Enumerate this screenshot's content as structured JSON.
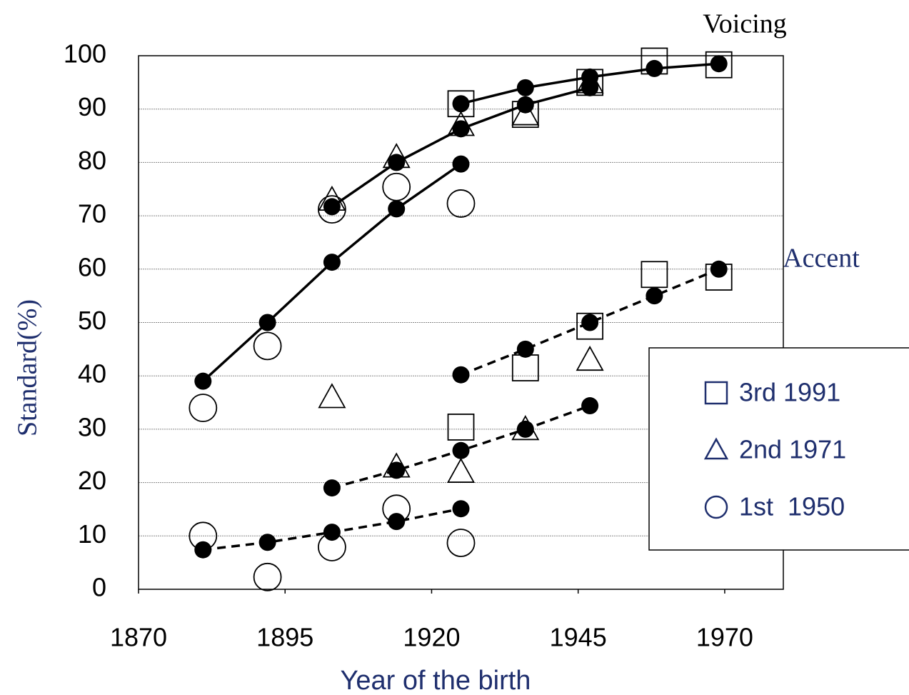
{
  "chart_data": {
    "type": "scatter",
    "xlabel": "Year of the birth",
    "ylabel": "Standard(%)",
    "annotations": [
      "Voicing",
      "Accent"
    ],
    "xlim": [
      1870,
      1980
    ],
    "ylim": [
      0,
      100
    ],
    "xticks": [
      1870,
      1895,
      1920,
      1945,
      1970
    ],
    "yticks": [
      0,
      10,
      20,
      30,
      40,
      50,
      60,
      70,
      80,
      90,
      100
    ],
    "grid": true,
    "legend": "right",
    "series": [
      {
        "name": "3rd 1991",
        "marker": "square",
        "color": "#000000",
        "x": [
          1925,
          1936,
          1947,
          1958,
          1969,
          1925,
          1936,
          1947,
          1958,
          1969
        ],
        "values": [
          91,
          89,
          95,
          99,
          98.3,
          30.4,
          41.5,
          49.3,
          59,
          58.5
        ]
      },
      {
        "name": "2nd 1971",
        "marker": "triangle",
        "color": "#000000",
        "x": [
          1903,
          1914,
          1925,
          1936,
          1947,
          1903,
          1914,
          1925,
          1936,
          1947
        ],
        "values": [
          73,
          81,
          87,
          89,
          95,
          36,
          23,
          22,
          30,
          43
        ]
      },
      {
        "name": "1st  1950",
        "marker": "circle",
        "color": "#000000",
        "x": [
          1881,
          1892,
          1903,
          1914,
          1925,
          1881,
          1892,
          1903,
          1914,
          1925
        ],
        "values": [
          34,
          45.6,
          71.2,
          75.4,
          72.3,
          10,
          2.3,
          7.9,
          15.1,
          8.7
        ]
      }
    ],
    "lines": [
      {
        "style": "solid",
        "x": [
          1881,
          1892,
          1903,
          1914,
          1925
        ],
        "values": [
          39,
          50,
          61.3,
          71.3,
          79.7
        ]
      },
      {
        "style": "solid",
        "x": [
          1903,
          1914,
          1925,
          1936,
          1947
        ],
        "values": [
          71.7,
          80,
          86.3,
          90.8,
          94
        ]
      },
      {
        "style": "solid",
        "x": [
          1925,
          1936,
          1947,
          1958,
          1969
        ],
        "values": [
          91,
          94,
          96,
          97.6,
          98.5
        ]
      },
      {
        "style": "dashed",
        "x": [
          1925,
          1936,
          1947,
          1958,
          1969
        ],
        "values": [
          40.2,
          45,
          50,
          55,
          60
        ]
      },
      {
        "style": "dashed",
        "x": [
          1903,
          1914,
          1925,
          1936,
          1947
        ],
        "values": [
          19,
          22.3,
          26,
          30,
          34.4
        ]
      },
      {
        "style": "dashed",
        "x": [
          1881,
          1892,
          1903,
          1914,
          1925
        ],
        "values": [
          7.4,
          8.8,
          10.7,
          12.7,
          15.1
        ]
      }
    ]
  }
}
